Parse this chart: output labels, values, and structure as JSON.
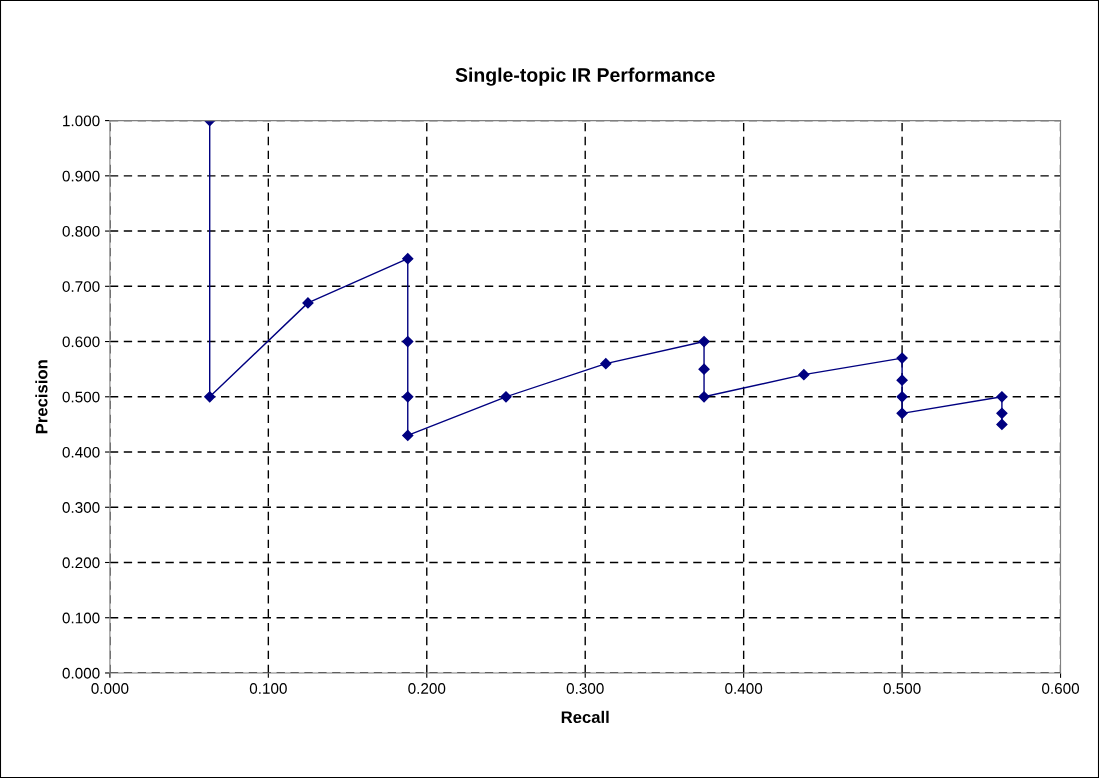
{
  "chart_data": {
    "type": "line",
    "title": "Single-topic IR Performance",
    "xlabel": "Recall",
    "ylabel": "Precision",
    "x": [
      0.063,
      0.063,
      0.125,
      0.188,
      0.188,
      0.188,
      0.188,
      0.25,
      0.313,
      0.375,
      0.375,
      0.375,
      0.438,
      0.5,
      0.5,
      0.5,
      0.5,
      0.563,
      0.563,
      0.563
    ],
    "series": [
      {
        "color": "#000080",
        "values": [
          1.0,
          0.5,
          0.67,
          0.75,
          0.6,
          0.5,
          0.43,
          0.5,
          0.56,
          0.6,
          0.55,
          0.5,
          0.54,
          0.57,
          0.53,
          0.5,
          0.47,
          0.5,
          0.47,
          0.45
        ]
      }
    ],
    "xlim": [
      0,
      0.6
    ],
    "ylim": [
      0,
      1
    ],
    "xticks": [
      {
        "value": 0,
        "label": "0.000"
      },
      {
        "value": 0.1,
        "label": "0.100"
      },
      {
        "value": 0.2,
        "label": "0.200"
      },
      {
        "value": 0.3,
        "label": "0.300"
      },
      {
        "value": 0.4,
        "label": "0.400"
      },
      {
        "value": 0.5,
        "label": "0.500"
      },
      {
        "value": 0.6,
        "label": "0.600"
      }
    ],
    "yticks": [
      {
        "value": 0,
        "label": "0.000"
      },
      {
        "value": 0.1,
        "label": "0.100"
      },
      {
        "value": 0.2,
        "label": "0.200"
      },
      {
        "value": 0.3,
        "label": "0.300"
      },
      {
        "value": 0.4,
        "label": "0.400"
      },
      {
        "value": 0.5,
        "label": "0.500"
      },
      {
        "value": 0.6,
        "label": "0.600"
      },
      {
        "value": 0.7,
        "label": "0.700"
      },
      {
        "value": 0.8,
        "label": "0.800"
      },
      {
        "value": 0.9,
        "label": "0.900"
      },
      {
        "value": 1,
        "label": "1.000"
      }
    ],
    "grid": true,
    "marker": "diamond",
    "line_style": "solid"
  }
}
